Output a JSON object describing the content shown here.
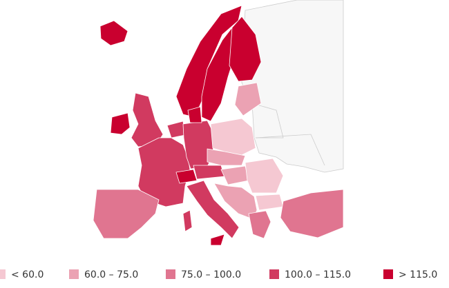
{
  "legend": {
    "items": [
      {
        "label": "< 60.0",
        "color": "#f5c8d2"
      },
      {
        "label": "60.0 – 75.0",
        "color": "#eba2b3"
      },
      {
        "label": "75.0 – 100.0",
        "color": "#e07590"
      },
      {
        "label": "100.0 – 115.0",
        "color": "#d13a60"
      },
      {
        "label": "> 115.0",
        "color": "#c9002f"
      }
    ]
  }
}
